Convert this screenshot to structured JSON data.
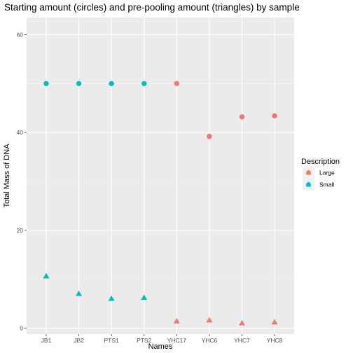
{
  "chart_data": {
    "type": "scatter",
    "title": "Starting amount (circles) and pre-pooling amount (triangles) by sample",
    "xlabel": "Names",
    "ylabel": "Total Mass of DNA",
    "categories": [
      "JB1",
      "JB2",
      "PTS1",
      "PTS2",
      "YHC17",
      "YHC6",
      "YHC7",
      "YHC8"
    ],
    "ylim": [
      -1.2,
      63.5
    ],
    "yticks": [
      0,
      20,
      40,
      60
    ],
    "grid": true,
    "legend": {
      "title": "Description",
      "placement": "right",
      "entries": [
        {
          "label": "Large",
          "color": "#F8766D"
        },
        {
          "label": "Small",
          "color": "#00BFC4"
        }
      ]
    },
    "series": [
      {
        "shape": "circle",
        "points": [
          {
            "x": "JB1",
            "y": 50,
            "group": "Small"
          },
          {
            "x": "JB2",
            "y": 50,
            "group": "Small"
          },
          {
            "x": "PTS1",
            "y": 50,
            "group": "Small"
          },
          {
            "x": "PTS2",
            "y": 50,
            "group": "Small"
          },
          {
            "x": "YHC17",
            "y": 50,
            "group": "Large"
          },
          {
            "x": "YHC6",
            "y": 39.2,
            "group": "Large"
          },
          {
            "x": "YHC7",
            "y": 43.2,
            "group": "Large"
          },
          {
            "x": "YHC8",
            "y": 43.4,
            "group": "Large"
          }
        ]
      },
      {
        "shape": "triangle",
        "points": [
          {
            "x": "JB1",
            "y": 10.6,
            "group": "Small"
          },
          {
            "x": "JB2",
            "y": 7.0,
            "group": "Small"
          },
          {
            "x": "PTS1",
            "y": 6.0,
            "group": "Small"
          },
          {
            "x": "PTS2",
            "y": 6.2,
            "group": "Small"
          },
          {
            "x": "YHC17",
            "y": 1.4,
            "group": "Large"
          },
          {
            "x": "YHC6",
            "y": 1.6,
            "group": "Large"
          },
          {
            "x": "YHC7",
            "y": 1.0,
            "group": "Large"
          },
          {
            "x": "YHC8",
            "y": 1.2,
            "group": "Large"
          }
        ]
      }
    ]
  }
}
